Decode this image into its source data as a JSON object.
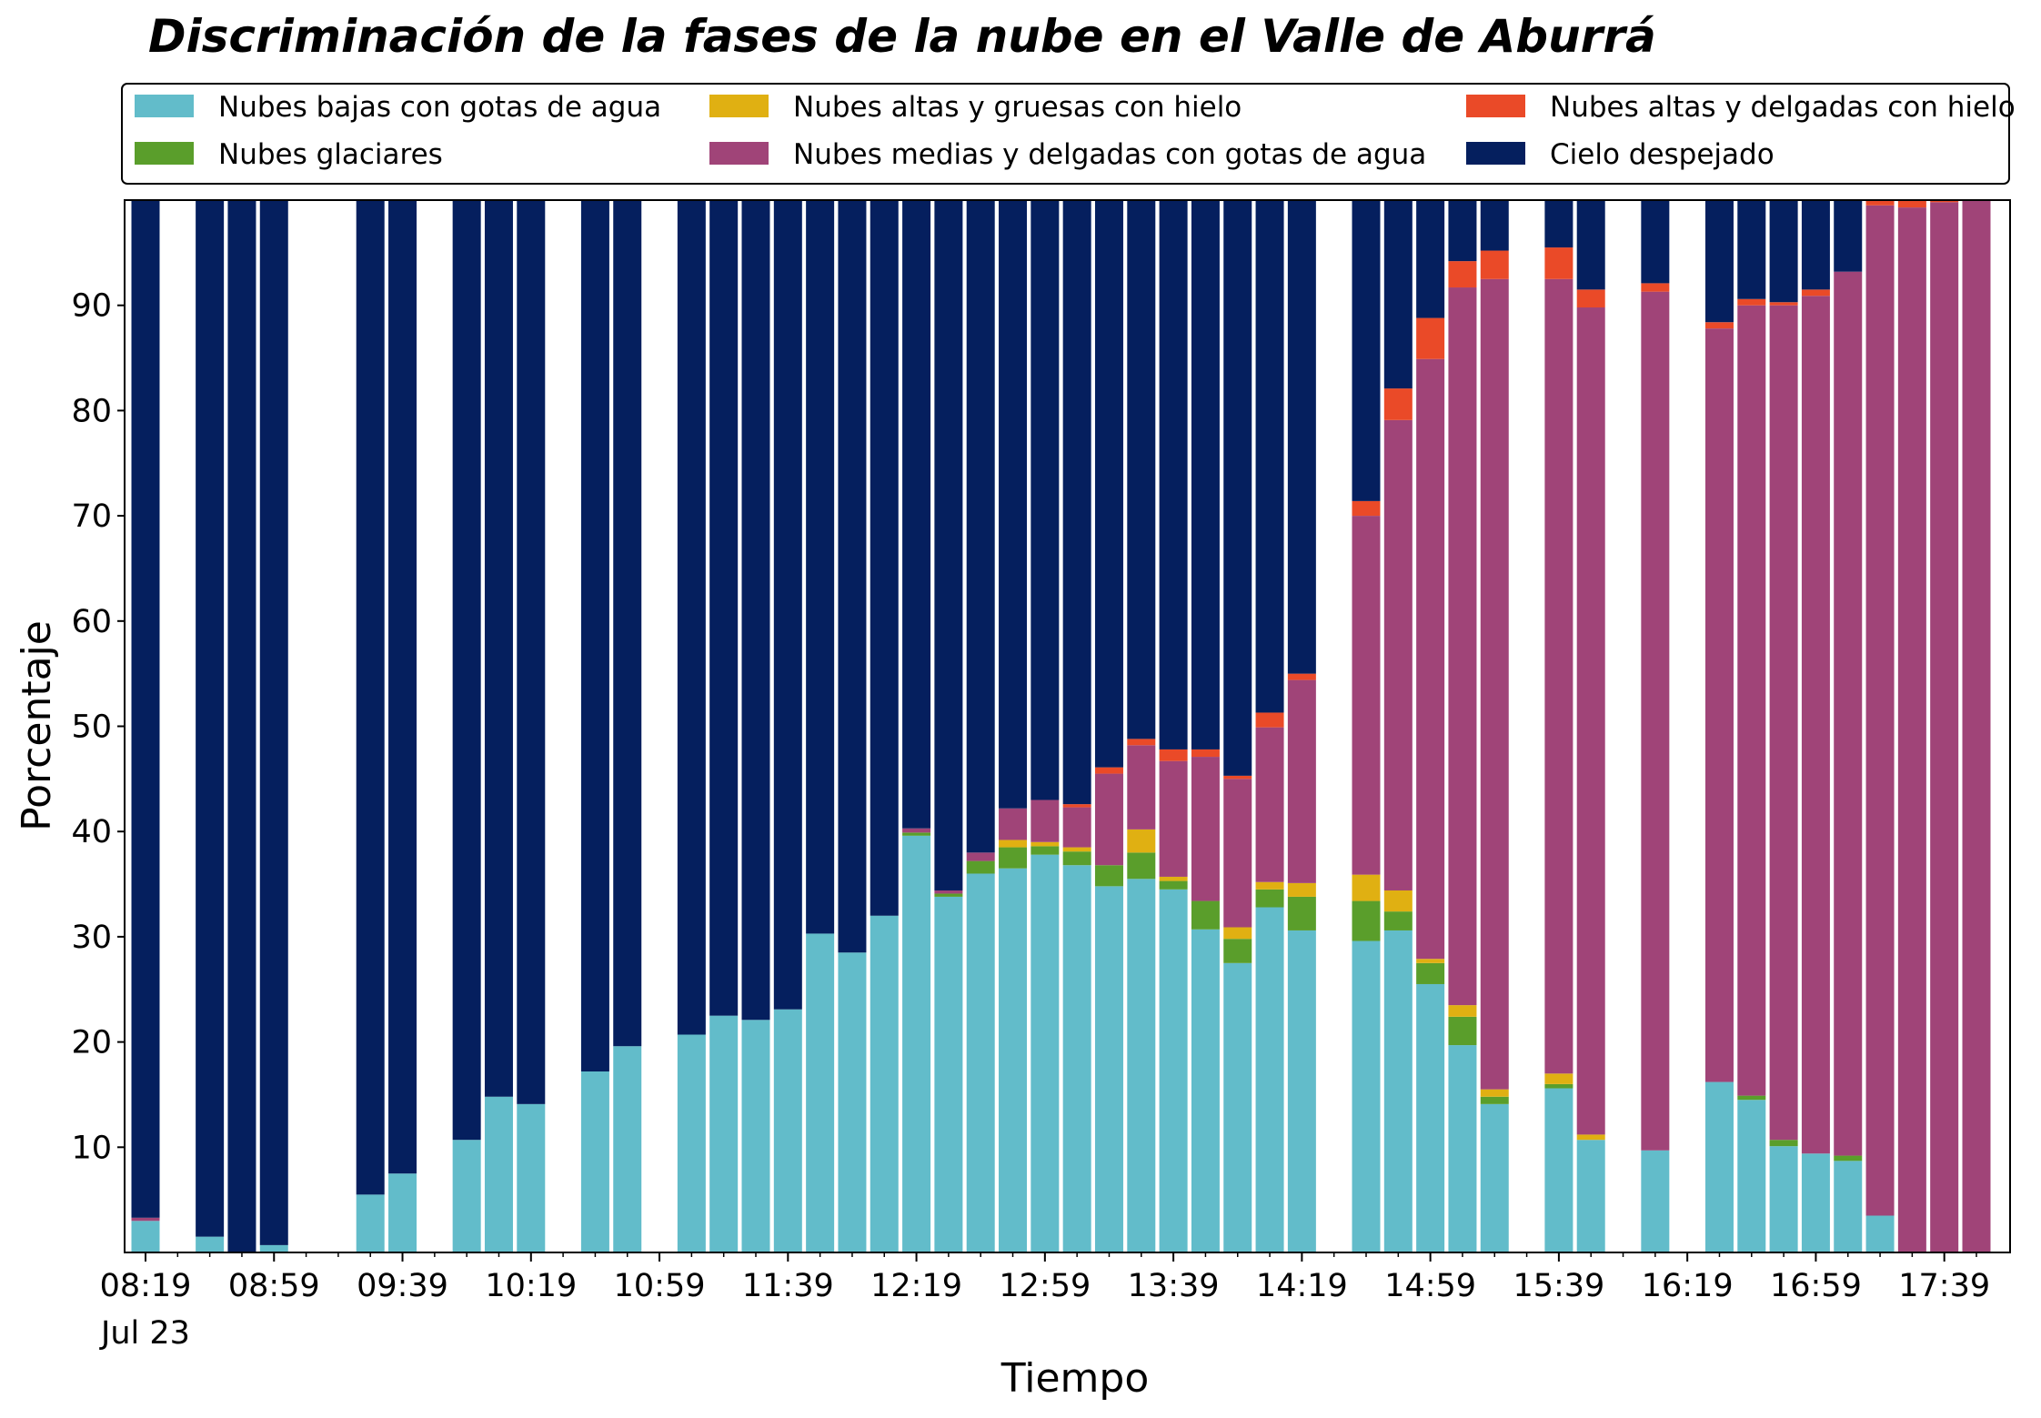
{
  "chart_data": {
    "type": "bar",
    "stacked": true,
    "title": "Discriminación de la fases de la nube en el Valle de Aburrá",
    "xlabel": "Tiempo",
    "ylabel": "Porcentaje",
    "ylim": [
      0,
      100
    ],
    "yticks": [
      10,
      20,
      30,
      40,
      50,
      60,
      70,
      80,
      90
    ],
    "grid": false,
    "legend_position": "top",
    "x_interval_minutes": 10,
    "x_start": "08:19",
    "x_end": "17:49",
    "xtick_labels": [
      {
        "time": "08:19",
        "label": "08:19",
        "sublabel": "Jul 23"
      },
      {
        "time": "08:59",
        "label": "08:59"
      },
      {
        "time": "09:39",
        "label": "09:39"
      },
      {
        "time": "10:19",
        "label": "10:19"
      },
      {
        "time": "10:59",
        "label": "10:59"
      },
      {
        "time": "11:39",
        "label": "11:39"
      },
      {
        "time": "12:19",
        "label": "12:19"
      },
      {
        "time": "12:59",
        "label": "12:59"
      },
      {
        "time": "13:39",
        "label": "13:39"
      },
      {
        "time": "14:19",
        "label": "14:19"
      },
      {
        "time": "14:59",
        "label": "14:59"
      },
      {
        "time": "15:39",
        "label": "15:39"
      },
      {
        "time": "16:19",
        "label": "16:19"
      },
      {
        "time": "16:59",
        "label": "16:59"
      },
      {
        "time": "17:39",
        "label": "17:39"
      }
    ],
    "series": [
      {
        "key": "bajas",
        "name": "Nubes bajas con gotas de agua",
        "color": "#62BCCA"
      },
      {
        "key": "glaciares",
        "name": "Nubes glaciares",
        "color": "#5A9E2B"
      },
      {
        "key": "gruesas",
        "name": "Nubes altas y gruesas con hielo",
        "color": "#E0B012"
      },
      {
        "key": "medias",
        "name": "Nubes medias y delgadas con gotas de agua",
        "color": "#A04478"
      },
      {
        "key": "delgadas",
        "name": "Nubes altas y delgadas con hielo",
        "color": "#EA4A28"
      },
      {
        "key": "despejado",
        "name": "Cielo despejado",
        "color": "#051F5E"
      }
    ],
    "bars": [
      {
        "time": "08:19",
        "values": [
          3.0,
          0,
          0,
          0.3,
          0,
          96.7
        ]
      },
      {
        "time": "08:39",
        "values": [
          1.5,
          0,
          0,
          0,
          0,
          98.5
        ]
      },
      {
        "time": "08:49",
        "values": [
          0,
          0,
          0,
          0,
          0,
          100
        ]
      },
      {
        "time": "08:59",
        "values": [
          0.7,
          0,
          0,
          0,
          0,
          99.3
        ]
      },
      {
        "time": "09:29",
        "values": [
          5.5,
          0,
          0,
          0,
          0,
          94.5
        ]
      },
      {
        "time": "09:39",
        "values": [
          7.5,
          0,
          0,
          0,
          0,
          92.5
        ]
      },
      {
        "time": "09:59",
        "values": [
          10.7,
          0,
          0,
          0,
          0,
          89.3
        ]
      },
      {
        "time": "10:09",
        "values": [
          14.8,
          0,
          0,
          0,
          0,
          85.2
        ]
      },
      {
        "time": "10:19",
        "values": [
          14.1,
          0,
          0,
          0,
          0,
          85.9
        ]
      },
      {
        "time": "10:39",
        "values": [
          17.2,
          0,
          0,
          0,
          0,
          82.8
        ]
      },
      {
        "time": "10:49",
        "values": [
          19.6,
          0,
          0,
          0,
          0,
          80.4
        ]
      },
      {
        "time": "11:09",
        "values": [
          20.7,
          0,
          0,
          0,
          0,
          79.3
        ]
      },
      {
        "time": "11:19",
        "values": [
          22.5,
          0,
          0,
          0,
          0,
          77.5
        ]
      },
      {
        "time": "11:29",
        "values": [
          22.1,
          0,
          0,
          0,
          0,
          77.9
        ]
      },
      {
        "time": "11:39",
        "values": [
          23.1,
          0,
          0,
          0,
          0,
          76.9
        ]
      },
      {
        "time": "11:49",
        "values": [
          30.3,
          0,
          0,
          0,
          0,
          69.7
        ]
      },
      {
        "time": "11:59",
        "values": [
          28.5,
          0,
          0,
          0,
          0,
          71.5
        ]
      },
      {
        "time": "12:09",
        "values": [
          32.0,
          0,
          0,
          0,
          0,
          68.0
        ]
      },
      {
        "time": "12:19",
        "values": [
          39.6,
          0.3,
          0,
          0.4,
          0,
          59.7
        ]
      },
      {
        "time": "12:29",
        "values": [
          33.8,
          0.3,
          0,
          0.3,
          0,
          65.6
        ]
      },
      {
        "time": "12:39",
        "values": [
          36.0,
          1.2,
          0,
          0.8,
          0,
          62.0
        ]
      },
      {
        "time": "12:49",
        "values": [
          36.5,
          2.0,
          0.7,
          3.0,
          0,
          57.8
        ]
      },
      {
        "time": "12:59",
        "values": [
          37.8,
          0.8,
          0.4,
          4.0,
          0,
          57.0
        ]
      },
      {
        "time": "13:09",
        "values": [
          36.8,
          1.3,
          0.4,
          3.8,
          0.3,
          57.4
        ]
      },
      {
        "time": "13:19",
        "values": [
          34.8,
          2.0,
          0,
          8.7,
          0.6,
          53.9
        ]
      },
      {
        "time": "13:29",
        "values": [
          35.5,
          2.5,
          2.2,
          8.0,
          0.6,
          51.2
        ]
      },
      {
        "time": "13:39",
        "values": [
          34.5,
          0.8,
          0.4,
          11.0,
          1.1,
          52.2
        ]
      },
      {
        "time": "13:49",
        "values": [
          30.7,
          2.7,
          0,
          13.7,
          0.7,
          52.2
        ]
      },
      {
        "time": "13:59",
        "values": [
          27.5,
          2.3,
          1.1,
          14.1,
          0.3,
          54.7
        ]
      },
      {
        "time": "14:09",
        "values": [
          32.8,
          1.7,
          0.7,
          14.7,
          1.4,
          48.7
        ]
      },
      {
        "time": "14:19",
        "values": [
          30.6,
          3.2,
          1.3,
          19.3,
          0.6,
          45.0
        ]
      },
      {
        "time": "14:39",
        "values": [
          29.6,
          3.8,
          2.5,
          34.1,
          1.4,
          28.6
        ]
      },
      {
        "time": "14:49",
        "values": [
          30.6,
          1.8,
          2.0,
          44.7,
          3.0,
          17.9
        ]
      },
      {
        "time": "14:59",
        "values": [
          25.5,
          2.0,
          0.4,
          57.0,
          3.9,
          11.2
        ]
      },
      {
        "time": "15:09",
        "values": [
          19.7,
          2.7,
          1.1,
          68.2,
          2.5,
          5.8
        ]
      },
      {
        "time": "15:19",
        "values": [
          14.1,
          0.7,
          0.7,
          77.0,
          2.7,
          4.8
        ]
      },
      {
        "time": "15:39",
        "values": [
          15.6,
          0.4,
          1.0,
          75.5,
          3.0,
          4.5
        ]
      },
      {
        "time": "15:49",
        "values": [
          10.7,
          0,
          0.5,
          78.6,
          1.7,
          8.5
        ]
      },
      {
        "time": "16:09",
        "values": [
          9.7,
          0,
          0,
          81.6,
          0.8,
          7.9
        ]
      },
      {
        "time": "16:29",
        "values": [
          16.2,
          0,
          0,
          71.6,
          0.6,
          11.6
        ]
      },
      {
        "time": "16:39",
        "values": [
          14.5,
          0.4,
          0,
          75.1,
          0.6,
          9.4
        ]
      },
      {
        "time": "16:49",
        "values": [
          10.1,
          0.6,
          0,
          79.3,
          0.3,
          9.7
        ]
      },
      {
        "time": "16:59",
        "values": [
          9.4,
          0,
          0,
          81.5,
          0.6,
          8.5
        ]
      },
      {
        "time": "17:09",
        "values": [
          8.7,
          0.5,
          0,
          84.0,
          0,
          6.8
        ]
      },
      {
        "time": "17:19",
        "values": [
          3.5,
          0,
          0,
          96.0,
          0.6,
          0
        ]
      },
      {
        "time": "17:29",
        "values": [
          0,
          0,
          0,
          99.3,
          0.7,
          0
        ]
      },
      {
        "time": "17:39",
        "values": [
          0,
          0,
          0,
          99.8,
          0.2,
          0
        ]
      },
      {
        "time": "17:49",
        "values": [
          0,
          0,
          0,
          100,
          0,
          0
        ]
      }
    ]
  }
}
